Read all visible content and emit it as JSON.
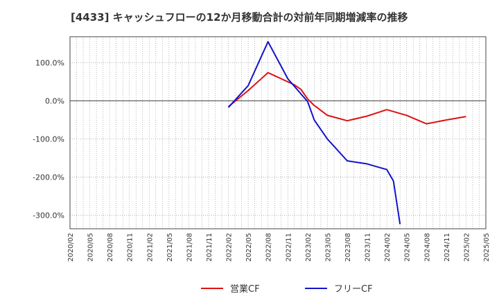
{
  "chart_data": {
    "type": "line",
    "title": "[4433]  キャッシュフローの12か月移動合計の対前年同期増減率の推移",
    "xlabel": "",
    "ylabel": "",
    "ylim": [
      -335,
      168
    ],
    "y_ticks": [
      100,
      0,
      -100,
      -200,
      -300
    ],
    "y_tick_labels": [
      "100.0%",
      "0.0%",
      "-100.0%",
      "-200.0%",
      "-300.0%"
    ],
    "categories": [
      "2020/02",
      "2020/05",
      "2020/08",
      "2020/11",
      "2021/02",
      "2021/05",
      "2021/08",
      "2021/11",
      "2022/02",
      "2022/05",
      "2022/08",
      "2022/11",
      "2023/02",
      "2023/05",
      "2023/08",
      "2023/11",
      "2024/02",
      "2024/05",
      "2024/08",
      "2024/11",
      "2025/02",
      "2025/05"
    ],
    "grid": true,
    "legend_position": "bottom",
    "series": [
      {
        "name": "営業CF",
        "color": "#dd1111",
        "points": [
          [
            "2022/02",
            -15
          ],
          [
            "2022/05",
            27
          ],
          [
            "2022/08",
            74
          ],
          [
            "2022/11",
            50
          ],
          [
            "2022/12",
            42
          ],
          [
            "2023/01",
            30
          ],
          [
            "2023/02",
            5
          ],
          [
            "2023/03",
            -12
          ],
          [
            "2023/05",
            -38
          ],
          [
            "2023/08",
            -52
          ],
          [
            "2023/11",
            -40
          ],
          [
            "2024/02",
            -23
          ],
          [
            "2024/05",
            -38
          ],
          [
            "2024/08",
            -60
          ],
          [
            "2024/11",
            -50
          ],
          [
            "2025/02",
            -41
          ]
        ]
      },
      {
        "name": "フリーCF",
        "color": "#1111cc",
        "points": [
          [
            "2022/02",
            -17
          ],
          [
            "2022/05",
            40
          ],
          [
            "2022/08",
            155
          ],
          [
            "2022/11",
            58
          ],
          [
            "2023/02",
            -2
          ],
          [
            "2023/03",
            -50
          ],
          [
            "2023/05",
            -100
          ],
          [
            "2023/08",
            -157
          ],
          [
            "2023/11",
            -165
          ],
          [
            "2024/01",
            -175
          ],
          [
            "2024/02",
            -180
          ],
          [
            "2024/03",
            -210
          ],
          [
            "2024/04",
            -323
          ]
        ]
      }
    ]
  }
}
